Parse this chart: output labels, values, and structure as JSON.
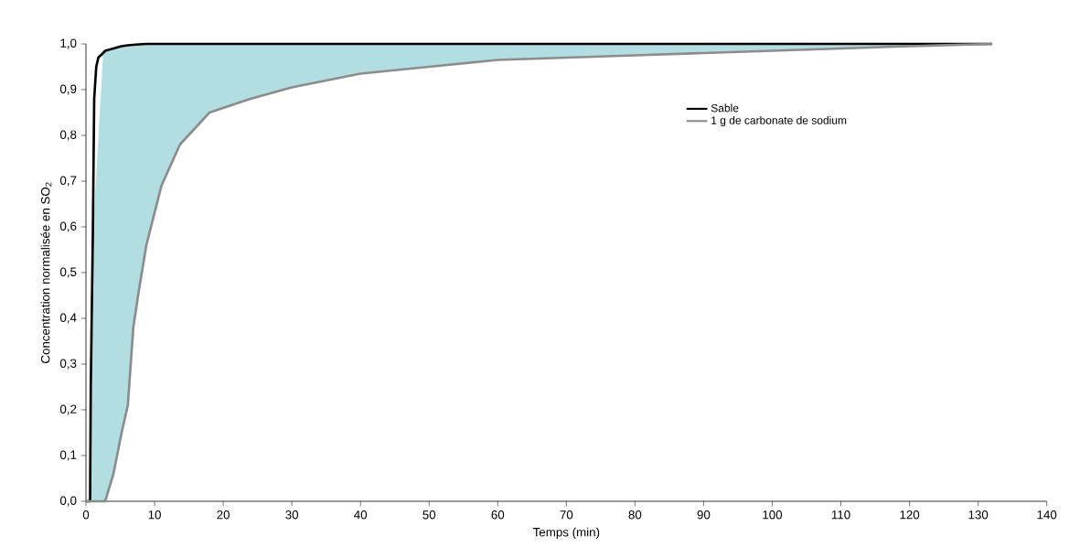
{
  "chart_data": {
    "type": "line",
    "xlabel": "Temps (min)",
    "ylabel": "Concentration normalisée en SO$_{2}$",
    "x": [
      0,
      0.6,
      0.7,
      1.0,
      2.5,
      2.8,
      4,
      5.2,
      6.1,
      6.9,
      7.7,
      8.8,
      11,
      13.7,
      18,
      20,
      24,
      30,
      40,
      50,
      60,
      70,
      80,
      90,
      100,
      110,
      120,
      132
    ],
    "series": [
      {
        "name": "Sable",
        "color": "#000000",
        "x": [
          0,
          0.6,
          0.7,
          1.0,
          1.2,
          1.5,
          1.8,
          2.5,
          2.8,
          4,
          5.2,
          6.1,
          6.9,
          7.7,
          8.8,
          11,
          13.7,
          18,
          20,
          24,
          30,
          40,
          50,
          60,
          70,
          80,
          90,
          100,
          110,
          120,
          132
        ],
        "values": [
          0,
          0,
          0.25,
          0.58,
          0.88,
          0.95,
          0.97,
          0.98,
          0.985,
          0.99,
          0.995,
          0.997,
          0.998,
          0.999,
          1.0,
          1.0,
          1.0,
          1.0,
          1.0,
          1.0,
          1.0,
          1.0,
          1.0,
          1.0,
          1.0,
          1.0,
          1.0,
          1.0,
          1.0,
          1.0,
          1.0
        ]
      },
      {
        "name": "1 g de carbonate de sodium",
        "color": "#8c8c8c",
        "values": [
          0,
          0,
          0,
          0,
          0,
          0,
          0.06,
          0.15,
          0.21,
          0.38,
          0.46,
          0.56,
          0.69,
          0.78,
          0.85,
          0.86,
          0.88,
          0.905,
          0.935,
          0.95,
          0.965,
          0.97,
          0.975,
          0.98,
          0.985,
          0.99,
          0.995,
          1.0
        ],
        "lower": [
          0,
          0,
          0,
          0,
          0,
          0,
          0.06,
          0.15,
          0.21,
          0.38,
          0.46,
          0.56,
          0.69,
          0.78,
          0.85,
          0.86,
          0.88,
          0.905,
          0.935,
          0.95,
          0.965,
          0.97,
          0.975,
          0.98,
          0.985,
          0.99,
          0.995,
          1.0
        ],
        "upper": [
          0,
          0,
          0.25,
          0.58,
          0.98,
          0.985,
          0.99,
          0.995,
          0.997,
          0.998,
          0.999,
          1.0,
          1.0,
          1.0,
          1.0,
          1.0,
          1.0,
          1.0,
          1.0,
          1.0,
          1.0,
          1.0,
          1.0,
          1.0,
          1.0,
          1.0,
          1.0,
          1.0
        ]
      }
    ],
    "xlim": [
      0,
      140
    ],
    "xticks": [
      0,
      10,
      20,
      30,
      40,
      50,
      60,
      70,
      80,
      90,
      100,
      110,
      120,
      130,
      140
    ],
    "ylim": [
      0,
      1
    ],
    "yticks": [
      {
        "value": 0,
        "label": "0,0"
      },
      {
        "value": 0.1,
        "label": "0,1"
      },
      {
        "value": 0.2,
        "label": "0,2"
      },
      {
        "value": 0.3,
        "label": "0,3"
      },
      {
        "value": 0.4,
        "label": "0,4"
      },
      {
        "value": 0.5,
        "label": "0,5"
      },
      {
        "value": 0.6,
        "label": "0,6"
      },
      {
        "value": 0.7,
        "label": "0,7"
      },
      {
        "value": 0.8,
        "label": "0,8"
      },
      {
        "value": 0.9,
        "label": "0,9"
      },
      {
        "value": 1.0,
        "label": "1,0"
      }
    ],
    "grid": false,
    "legend": "top right",
    "marker": "none",
    "line_style": "solid"
  }
}
